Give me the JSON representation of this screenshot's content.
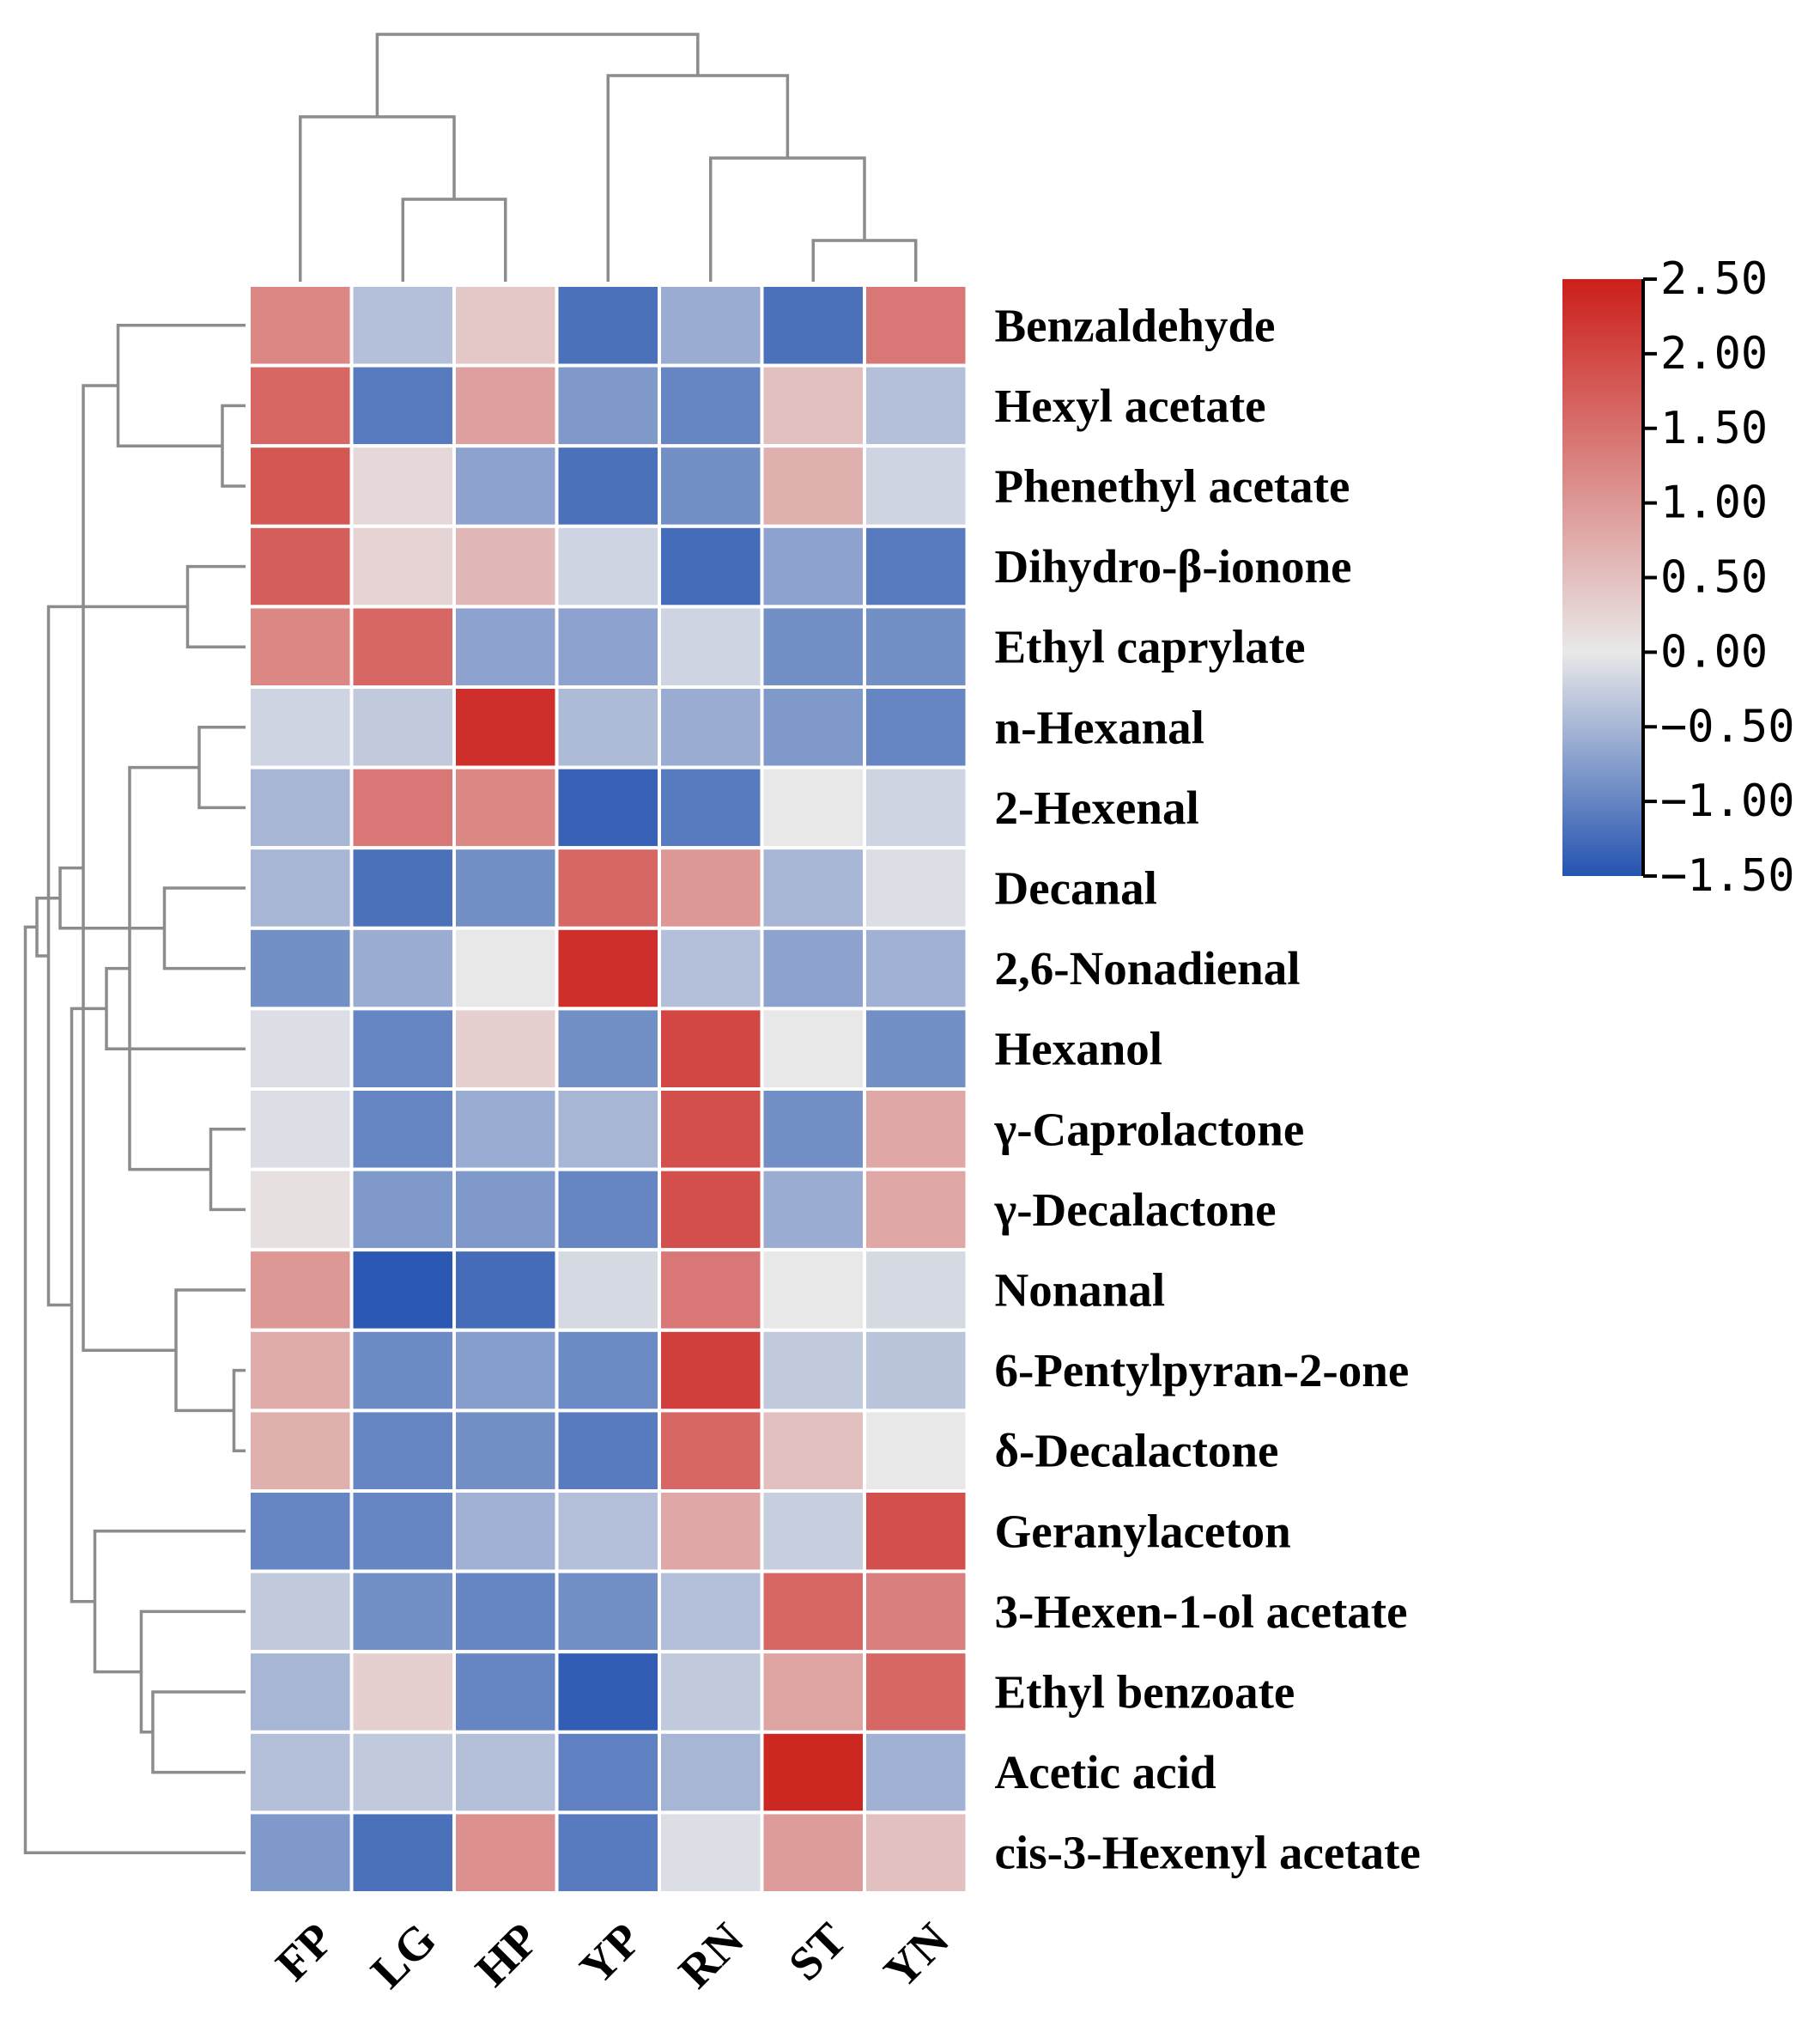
{
  "chart_data": {
    "type": "heatmap",
    "title": "",
    "columns": [
      "FP",
      "LG",
      "HP",
      "YP",
      "RN",
      "ST",
      "YN"
    ],
    "rows": [
      "Benzaldehyde",
      "Hexyl acetate",
      "Phenethyl acetate",
      "Dihydro-β-ionone",
      "Ethyl caprylate",
      "n-Hexanal",
      "2-Hexenal",
      "Decanal",
      "2,6-Nonadienal",
      "Hexanol",
      "γ-Caprolactone",
      "γ-Decalactone",
      "Nonanal",
      "6-Pentylpyran-2-one",
      "δ-Decalactone",
      "Geranylaceton",
      "3-Hexen-1-ol acetate",
      "Ethyl benzoate",
      "Acetic acid",
      "cis-3-Hexenyl acetate"
    ],
    "values": [
      [
        1.2,
        -0.4,
        0.4,
        -1.2,
        -0.6,
        -1.2,
        1.4
      ],
      [
        1.6,
        -1.1,
        0.9,
        -0.8,
        -1.0,
        0.5,
        -0.4
      ],
      [
        1.8,
        0.2,
        -0.7,
        -1.2,
        -0.9,
        0.7,
        -0.2
      ],
      [
        1.7,
        0.25,
        0.6,
        -0.2,
        -1.25,
        -0.7,
        -1.1
      ],
      [
        1.2,
        1.6,
        -0.7,
        -0.7,
        -0.2,
        -0.9,
        -0.9
      ],
      [
        -0.2,
        -0.3,
        2.3,
        -0.45,
        -0.6,
        -0.8,
        -1.0
      ],
      [
        -0.5,
        1.4,
        1.2,
        -1.35,
        -1.1,
        0.0,
        -0.2
      ],
      [
        -0.5,
        -1.2,
        -0.9,
        1.6,
        1.0,
        -0.5,
        -0.1
      ],
      [
        -0.9,
        -0.6,
        0.0,
        2.3,
        -0.4,
        -0.7,
        -0.55
      ],
      [
        -0.1,
        -1.0,
        0.3,
        -0.9,
        2.0,
        0.0,
        -0.9
      ],
      [
        -0.1,
        -1.0,
        -0.6,
        -0.5,
        1.9,
        -0.9,
        0.8
      ],
      [
        0.1,
        -0.8,
        -0.8,
        -1.0,
        1.9,
        -0.6,
        0.8
      ],
      [
        1.0,
        -1.45,
        -1.25,
        -0.15,
        1.4,
        0.0,
        -0.15
      ],
      [
        0.75,
        -0.95,
        -0.75,
        -0.95,
        2.1,
        -0.3,
        -0.35
      ],
      [
        0.7,
        -1.0,
        -0.9,
        -1.1,
        1.6,
        0.5,
        0.0
      ],
      [
        -1.0,
        -1.0,
        -0.55,
        -0.4,
        0.8,
        -0.25,
        1.9
      ],
      [
        -0.3,
        -0.9,
        -1.0,
        -0.9,
        -0.4,
        1.6,
        1.3
      ],
      [
        -0.5,
        0.3,
        -1.0,
        -1.4,
        -0.3,
        0.85,
        1.6
      ],
      [
        -0.4,
        -0.3,
        -0.4,
        -1.05,
        -0.5,
        2.4,
        -0.55
      ],
      [
        -0.8,
        -1.2,
        1.1,
        -1.1,
        -0.1,
        0.95,
        0.5
      ]
    ],
    "colorbar": {
      "min": -1.5,
      "max": 2.5,
      "ticks": [
        2.5,
        2.0,
        1.5,
        1.0,
        0.5,
        0.0,
        -0.5,
        -1.0,
        -1.5
      ],
      "tick_labels": [
        "2.50",
        "2.00",
        "1.50",
        "1.00",
        "0.50",
        "0.00",
        "−0.50",
        "−1.00",
        "−1.50"
      ],
      "colors": {
        "low": "#2453b0",
        "mid": "#e8e8e8",
        "high": "#cc1f1a"
      }
    },
    "column_dendrogram": [
      [
        5,
        6
      ],
      [
        1,
        2
      ],
      [
        4,
        7
      ],
      [
        0,
        8
      ],
      [
        3,
        9
      ],
      [
        10,
        11
      ]
    ],
    "row_dendrogram": [
      [
        13,
        14
      ],
      [
        1,
        2
      ],
      [
        10,
        11
      ],
      [
        5,
        6
      ],
      [
        3,
        4
      ],
      [
        12,
        20
      ],
      [
        7,
        8
      ],
      [
        17,
        18
      ],
      [
        16,
        27
      ],
      [
        22,
        23
      ],
      [
        0,
        21
      ],
      [
        9,
        29
      ],
      [
        15,
        28
      ],
      [
        30,
        25
      ],
      [
        32,
        31
      ],
      [
        33,
        26
      ],
      [
        24,
        34
      ],
      [
        35,
        36
      ],
      [
        19,
        37
      ]
    ],
    "colors": {
      "dendrogram": "#8c8c8c",
      "cell_border": "#ffffff"
    }
  }
}
